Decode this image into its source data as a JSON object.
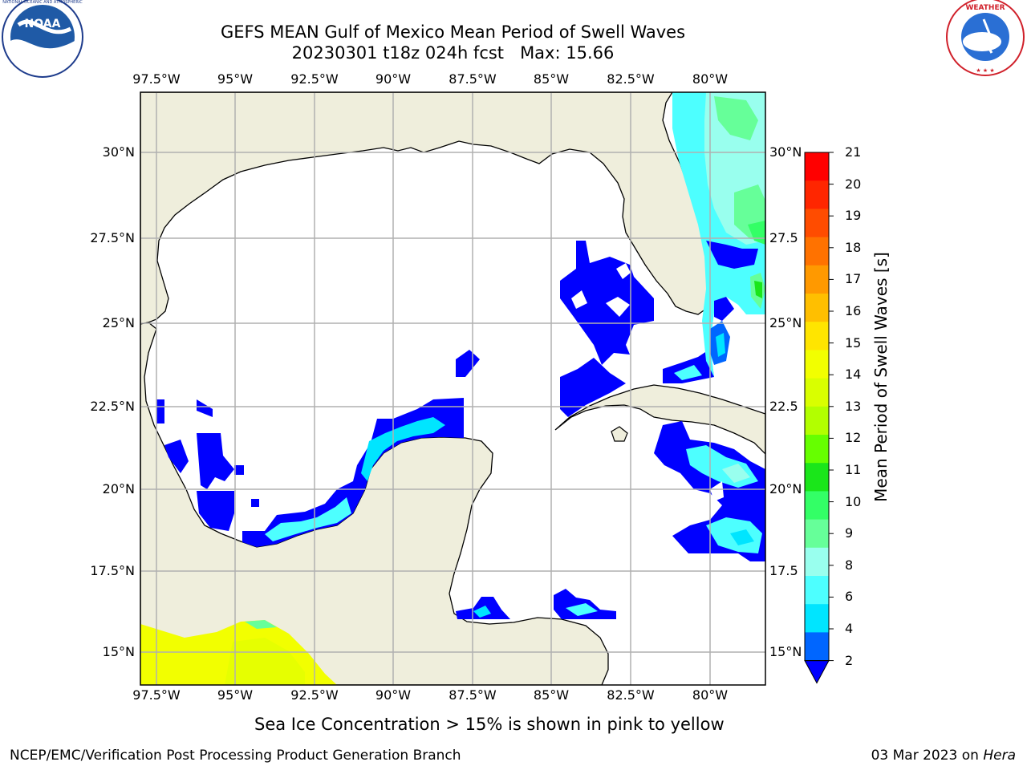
{
  "header": {
    "title_line1": "GEFS MEAN Gulf of Mexico Mean Period of Swell Waves",
    "title_line2": "20230301 t18z 024h fcst   Max: 15.66"
  },
  "logos": {
    "left": {
      "name": "NOAA",
      "ring_text": "NATIONAL OCEANIC AND ATMOSPHERIC ADMINISTRATION · U.S. DEPARTMENT OF COMMERCE"
    },
    "right": {
      "name": "NATIONAL WEATHER SERVICE"
    }
  },
  "map": {
    "lon_ticks": [
      "97.5°W",
      "95°W",
      "92.5°W",
      "90°W",
      "87.5°W",
      "85°W",
      "82.5°W",
      "80°W"
    ],
    "lat_ticks_left": [
      "30°N",
      "27.5°N",
      "25°N",
      "22.5°N",
      "20°N",
      "17.5°N",
      "15°N"
    ],
    "lat_ticks_right": [
      "30°N",
      "27.5",
      "25°N",
      "22.5",
      "20°N",
      "17.5",
      "15°N"
    ],
    "land_color": "#efeedc",
    "ocean_color": "#ffffff",
    "grid_color": "#b0b0b0"
  },
  "colorbar": {
    "label": "Mean Period of Swell Waves [s]",
    "ticks": [
      "21",
      "20",
      "19",
      "18",
      "17",
      "16",
      "15",
      "14",
      "13",
      "12",
      "11",
      "10",
      "9",
      "8",
      "6",
      "4",
      "2"
    ],
    "colors": [
      "#ff0000",
      "#ff2600",
      "#ff4c00",
      "#ff7200",
      "#ff9900",
      "#ffbf00",
      "#ffe500",
      "#f2ff00",
      "#d9ff00",
      "#b2ff00",
      "#66ff00",
      "#1ae61a",
      "#33ff66",
      "#66ff99",
      "#99ffee",
      "#4dffff",
      "#00e5ff",
      "#0066ff"
    ],
    "under_color": "#0000ff"
  },
  "note": "Sea Ice Concentration > 15% is shown in pink to yellow",
  "footer": {
    "left": "NCEP/EMC/Verification Post Processing Product Generation Branch",
    "right_prefix": "03 Mar 2023 on ",
    "right_host": "Hera"
  }
}
